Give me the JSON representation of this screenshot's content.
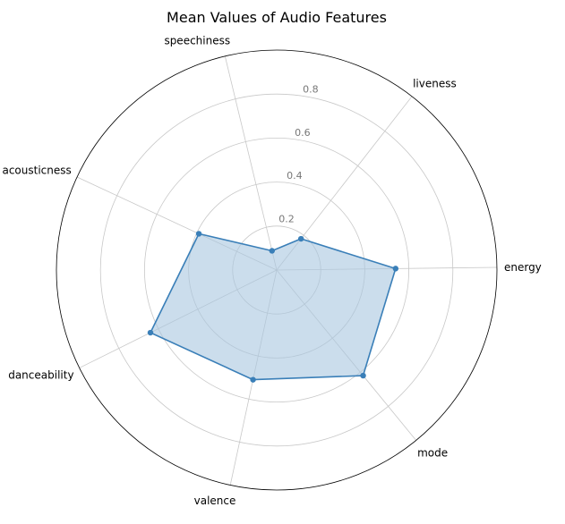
{
  "chart_data": {
    "type": "radar",
    "title": "Mean Values of Audio Features",
    "categories": [
      "energy",
      "liveness",
      "speechiness",
      "acousticness",
      "danceability",
      "valence",
      "mode"
    ],
    "series": [
      {
        "values": [
          0.54,
          0.18,
          0.09,
          0.39,
          0.64,
          0.51,
          0.62
        ]
      }
    ],
    "rlim": [
      0,
      1.0
    ],
    "r_ticks": [
      "0.2",
      "0.4",
      "0.6",
      "0.8"
    ],
    "grid": true,
    "colors": {
      "line": "#3a7fb8",
      "fill": "#a9c6e0",
      "grid": "#c8c8c8",
      "outline": "#000000"
    }
  }
}
